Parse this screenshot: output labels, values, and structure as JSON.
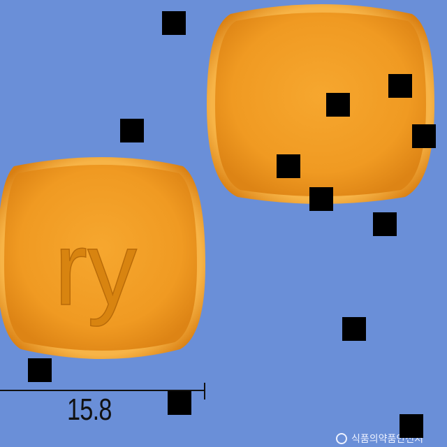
{
  "image": {
    "background_color": "#6a8fd8",
    "pill_color": "#f2a32e",
    "pill_imprint": "ry",
    "size_label": "15.8",
    "watermark_text": "식품의약품안전처"
  }
}
